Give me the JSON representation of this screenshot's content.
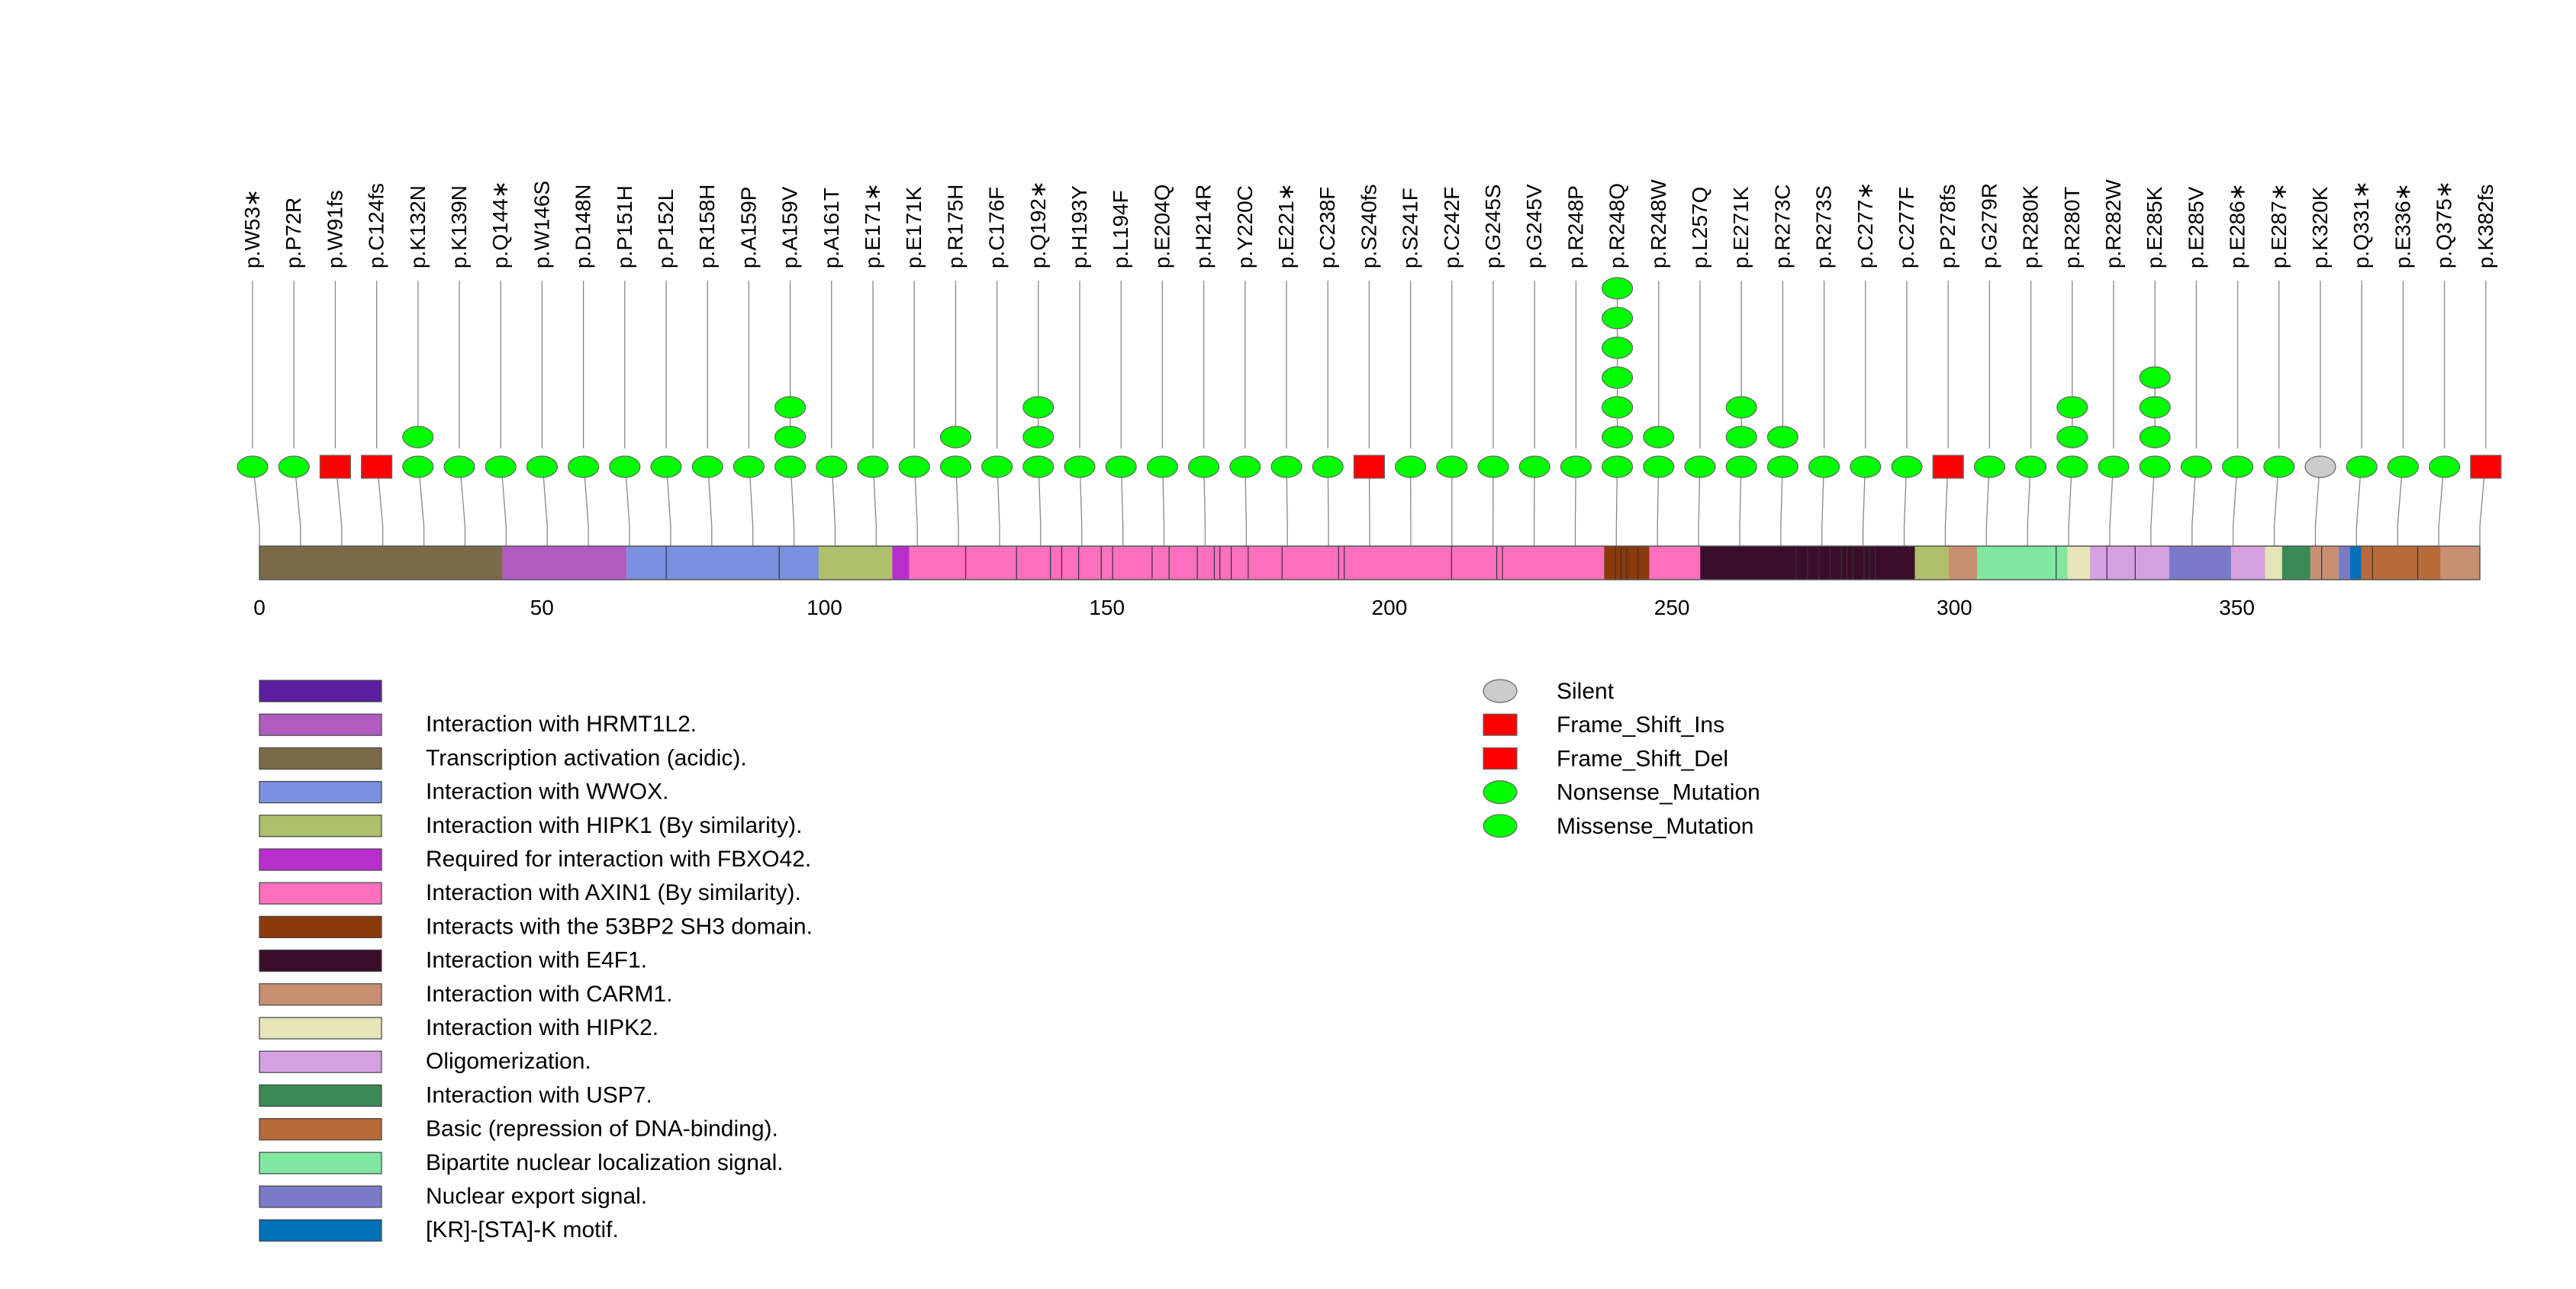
{
  "chart_data": {
    "type": "lollipop",
    "title": "",
    "xlabel": "",
    "ylabel": "",
    "xlim": [
      0,
      393
    ],
    "xticks": [
      0,
      50,
      100,
      150,
      200,
      250,
      300,
      350
    ],
    "protein_length": 393,
    "mutations": [
      {
        "label": "p.W53",
        "star": true,
        "type": "Nonsense_Mutation",
        "count": 1
      },
      {
        "label": "p.P72R",
        "star": false,
        "type": "Missense_Mutation",
        "count": 1
      },
      {
        "label": "p.W91fs",
        "star": false,
        "type": "Frame_Shift_Del",
        "count": 1
      },
      {
        "label": "p.C124fs",
        "star": false,
        "type": "Frame_Shift_Del",
        "count": 1
      },
      {
        "label": "p.K132N",
        "star": false,
        "type": "Missense_Mutation",
        "count": 2
      },
      {
        "label": "p.K139N",
        "star": false,
        "type": "Missense_Mutation",
        "count": 1
      },
      {
        "label": "p.Q144",
        "star": true,
        "type": "Nonsense_Mutation",
        "count": 1
      },
      {
        "label": "p.W146S",
        "star": false,
        "type": "Missense_Mutation",
        "count": 1
      },
      {
        "label": "p.D148N",
        "star": false,
        "type": "Missense_Mutation",
        "count": 1
      },
      {
        "label": "p.P151H",
        "star": false,
        "type": "Missense_Mutation",
        "count": 1
      },
      {
        "label": "p.P152L",
        "star": false,
        "type": "Missense_Mutation",
        "count": 1
      },
      {
        "label": "p.R158H",
        "star": false,
        "type": "Missense_Mutation",
        "count": 1
      },
      {
        "label": "p.A159P",
        "star": false,
        "type": "Missense_Mutation",
        "count": 1
      },
      {
        "label": "p.A159V",
        "star": false,
        "type": "Missense_Mutation",
        "count": 3
      },
      {
        "label": "p.A161T",
        "star": false,
        "type": "Missense_Mutation",
        "count": 1
      },
      {
        "label": "p.E171",
        "star": true,
        "type": "Nonsense_Mutation",
        "count": 1
      },
      {
        "label": "p.E171K",
        "star": false,
        "type": "Missense_Mutation",
        "count": 1
      },
      {
        "label": "p.R175H",
        "star": false,
        "type": "Missense_Mutation",
        "count": 2
      },
      {
        "label": "p.C176F",
        "star": false,
        "type": "Missense_Mutation",
        "count": 1
      },
      {
        "label": "p.Q192",
        "star": true,
        "type": "Nonsense_Mutation",
        "count": 3
      },
      {
        "label": "p.H193Y",
        "star": false,
        "type": "Missense_Mutation",
        "count": 1
      },
      {
        "label": "p.L194F",
        "star": false,
        "type": "Missense_Mutation",
        "count": 1
      },
      {
        "label": "p.E204Q",
        "star": false,
        "type": "Missense_Mutation",
        "count": 1
      },
      {
        "label": "p.H214R",
        "star": false,
        "type": "Missense_Mutation",
        "count": 1
      },
      {
        "label": "p.Y220C",
        "star": false,
        "type": "Missense_Mutation",
        "count": 1
      },
      {
        "label": "p.E221",
        "star": true,
        "type": "Nonsense_Mutation",
        "count": 1
      },
      {
        "label": "p.C238F",
        "star": false,
        "type": "Missense_Mutation",
        "count": 1
      },
      {
        "label": "p.S240fs",
        "star": false,
        "type": "Frame_Shift_Del",
        "count": 1
      },
      {
        "label": "p.S241F",
        "star": false,
        "type": "Missense_Mutation",
        "count": 1
      },
      {
        "label": "p.C242F",
        "star": false,
        "type": "Missense_Mutation",
        "count": 1
      },
      {
        "label": "p.G245S",
        "star": false,
        "type": "Missense_Mutation",
        "count": 1
      },
      {
        "label": "p.G245V",
        "star": false,
        "type": "Missense_Mutation",
        "count": 1
      },
      {
        "label": "p.R248P",
        "star": false,
        "type": "Missense_Mutation",
        "count": 1
      },
      {
        "label": "p.R248Q",
        "star": false,
        "type": "Missense_Mutation",
        "count": 7
      },
      {
        "label": "p.R248W",
        "star": false,
        "type": "Missense_Mutation",
        "count": 2
      },
      {
        "label": "p.L257Q",
        "star": false,
        "type": "Missense_Mutation",
        "count": 1
      },
      {
        "label": "p.E271K",
        "star": false,
        "type": "Missense_Mutation",
        "count": 3
      },
      {
        "label": "p.R273C",
        "star": false,
        "type": "Missense_Mutation",
        "count": 2
      },
      {
        "label": "p.R273S",
        "star": false,
        "type": "Missense_Mutation",
        "count": 1
      },
      {
        "label": "p.C277",
        "star": true,
        "type": "Nonsense_Mutation",
        "count": 1
      },
      {
        "label": "p.C277F",
        "star": false,
        "type": "Missense_Mutation",
        "count": 1
      },
      {
        "label": "p.P278fs",
        "star": false,
        "type": "Frame_Shift_Del",
        "count": 1
      },
      {
        "label": "p.G279R",
        "star": false,
        "type": "Missense_Mutation",
        "count": 1
      },
      {
        "label": "p.R280K",
        "star": false,
        "type": "Missense_Mutation",
        "count": 1
      },
      {
        "label": "p.R280T",
        "star": false,
        "type": "Missense_Mutation",
        "count": 3
      },
      {
        "label": "p.R282W",
        "star": false,
        "type": "Missense_Mutation",
        "count": 1
      },
      {
        "label": "p.E285K",
        "star": false,
        "type": "Missense_Mutation",
        "count": 4
      },
      {
        "label": "p.E285V",
        "star": false,
        "type": "Missense_Mutation",
        "count": 1
      },
      {
        "label": "p.E286",
        "star": true,
        "type": "Nonsense_Mutation",
        "count": 1
      },
      {
        "label": "p.E287",
        "star": true,
        "type": "Nonsense_Mutation",
        "count": 1
      },
      {
        "label": "p.K320K",
        "star": false,
        "type": "Silent",
        "count": 1
      },
      {
        "label": "p.Q331",
        "star": true,
        "type": "Nonsense_Mutation",
        "count": 1
      },
      {
        "label": "p.E336",
        "star": true,
        "type": "Nonsense_Mutation",
        "count": 1
      },
      {
        "label": "p.Q375",
        "star": true,
        "type": "Nonsense_Mutation",
        "count": 1
      },
      {
        "label": "p.K382fs",
        "star": false,
        "type": "Frame_Shift_Del",
        "count": 1
      }
    ],
    "domains": [
      {
        "start": 0,
        "end": 43,
        "color": "#7A6A48"
      },
      {
        "start": 43,
        "end": 65,
        "color": "#B05CC0"
      },
      {
        "start": 65,
        "end": 99,
        "color": "#7A90E0"
      },
      {
        "start": 99,
        "end": 112,
        "color": "#AEC06C"
      },
      {
        "start": 112,
        "end": 115,
        "color": "#B82ECC"
      },
      {
        "start": 115,
        "end": 238,
        "color": "#FF70BD"
      },
      {
        "start": 238,
        "end": 246,
        "color": "#8B3A0B"
      },
      {
        "start": 246,
        "end": 255,
        "color": "#FF70BD"
      },
      {
        "start": 255,
        "end": 293,
        "color": "#3A0E2A"
      },
      {
        "start": 293,
        "end": 299,
        "color": "#AEC06C"
      },
      {
        "start": 299,
        "end": 304,
        "color": "#C89070"
      },
      {
        "start": 304,
        "end": 320,
        "color": "#80E8A0"
      },
      {
        "start": 320,
        "end": 324,
        "color": "#E6E4B8"
      },
      {
        "start": 324,
        "end": 338,
        "color": "#D5A0E0"
      },
      {
        "start": 338,
        "end": 349,
        "color": "#7A7AC8"
      },
      {
        "start": 349,
        "end": 355,
        "color": "#D5A0E0"
      },
      {
        "start": 355,
        "end": 358,
        "color": "#E6E4B8"
      },
      {
        "start": 358,
        "end": 363,
        "color": "#3A8A55"
      },
      {
        "start": 363,
        "end": 368,
        "color": "#C89070"
      },
      {
        "start": 368,
        "end": 370,
        "color": "#7A7AC8"
      },
      {
        "start": 370,
        "end": 372,
        "color": "#0070B8"
      },
      {
        "start": 372,
        "end": 393,
        "color": "#B86A3A"
      },
      {
        "start": 386,
        "end": 393,
        "color": "#C89070"
      }
    ],
    "domain_ticks": [
      72,
      92,
      125,
      134,
      140,
      142,
      145,
      149,
      151,
      158,
      161,
      166,
      169,
      170,
      172,
      175,
      181,
      191,
      192,
      211,
      219,
      220,
      240,
      241,
      242,
      244,
      272,
      274,
      276,
      278,
      280,
      281,
      282,
      284,
      285,
      286,
      318,
      327,
      332,
      365,
      374,
      382
    ],
    "domain_legend": [
      {
        "label": "",
        "color": "#5B1FA0"
      },
      {
        "label": "Interaction with HRMT1L2.",
        "color": "#B05CC0"
      },
      {
        "label": "Transcription activation (acidic).",
        "color": "#7A6A48"
      },
      {
        "label": "Interaction with WWOX.",
        "color": "#7A90E0"
      },
      {
        "label": "Interaction with HIPK1 (By similarity).",
        "color": "#AEC06C"
      },
      {
        "label": "Required for interaction with FBXO42.",
        "color": "#B82ECC"
      },
      {
        "label": "Interaction with AXIN1 (By similarity).",
        "color": "#FF70BD"
      },
      {
        "label": "Interacts with the 53BP2 SH3 domain.",
        "color": "#8B3A0B"
      },
      {
        "label": "Interaction with E4F1.",
        "color": "#3A0E2A"
      },
      {
        "label": "Interaction with CARM1.",
        "color": "#C89070"
      },
      {
        "label": "Interaction with HIPK2.",
        "color": "#E6E4B8"
      },
      {
        "label": "Oligomerization.",
        "color": "#D5A0E0"
      },
      {
        "label": "Interaction with USP7.",
        "color": "#3A8A55"
      },
      {
        "label": "Basic (repression of DNA-binding).",
        "color": "#B86A3A"
      },
      {
        "label": "Bipartite nuclear localization signal.",
        "color": "#80E8A0"
      },
      {
        "label": "Nuclear export signal.",
        "color": "#7A7AC8"
      },
      {
        "label": "[KR]-[STA]-K motif.",
        "color": "#0070B8"
      }
    ],
    "mutation_legend": [
      {
        "label": "Silent",
        "shape": "ellipse",
        "color": "#CCCCCC"
      },
      {
        "label": "Frame_Shift_Ins",
        "shape": "rect",
        "color": "#FF0000"
      },
      {
        "label": "Frame_Shift_Del",
        "shape": "rect",
        "color": "#FF0000"
      },
      {
        "label": "Nonsense_Mutation",
        "shape": "ellipse",
        "color": "#00FF00"
      },
      {
        "label": "Missense_Mutation",
        "shape": "ellipse",
        "color": "#00FF00"
      }
    ],
    "type_colors": {
      "Silent": "#CCCCCC",
      "Frame_Shift_Ins": "#FF0000",
      "Frame_Shift_Del": "#FF0000",
      "Nonsense_Mutation": "#00FF00",
      "Missense_Mutation": "#00FF00"
    }
  }
}
